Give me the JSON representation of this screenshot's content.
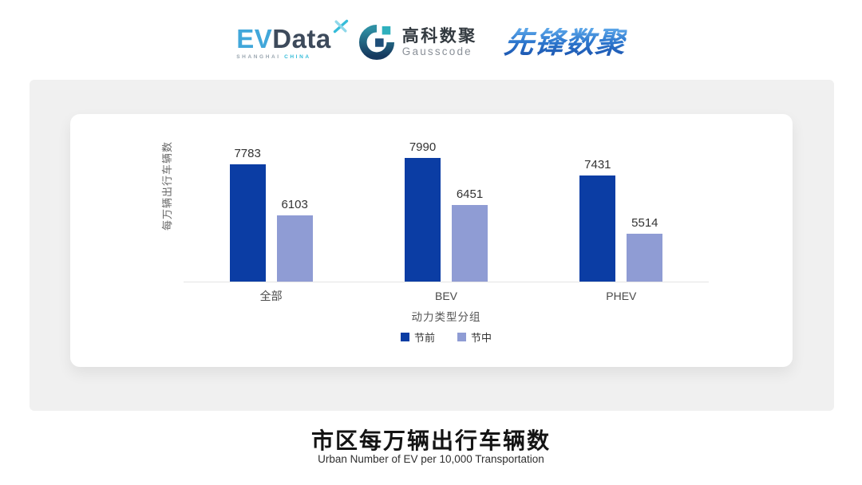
{
  "header": {
    "evdata": {
      "ev": "EV",
      "data": "Data",
      "sub1": "SHANGHAI",
      "sub2": "CHINA"
    },
    "gausscode": {
      "cn": "高科数聚",
      "en": "Gausscode"
    },
    "pioneer": {
      "text": "先锋数聚"
    },
    "brand_colors": {
      "evdata_blue": "#41a7da",
      "evdata_dark": "#3d4a5b",
      "evdata_cyan": "#35bcd9",
      "gauss_teal": "#2fb0bd",
      "gauss_navy": "#1e4e79",
      "pioneer_blue": "#2a70c8"
    }
  },
  "chart_data": {
    "type": "bar",
    "categories": [
      "全部",
      "BEV",
      "PHEV"
    ],
    "series": [
      {
        "name": "节前",
        "color": "#0b3da4",
        "values": [
          7783,
          7990,
          7431
        ]
      },
      {
        "name": "节中",
        "color": "#8f9cd4",
        "values": [
          6103,
          6451,
          5514
        ]
      }
    ],
    "title": "市区每万辆出行车辆数",
    "xlabel": "动力类型分组",
    "ylabel": "每万辆出行车辆数",
    "ylim": [
      3950,
      8150
    ],
    "grid": false,
    "legend_position": "bottom",
    "bar_value_labels": true
  },
  "footer": {
    "title": "市区每万辆出行车辆数",
    "subtitle": "Urban Number of EV per 10,000 Transportation"
  }
}
